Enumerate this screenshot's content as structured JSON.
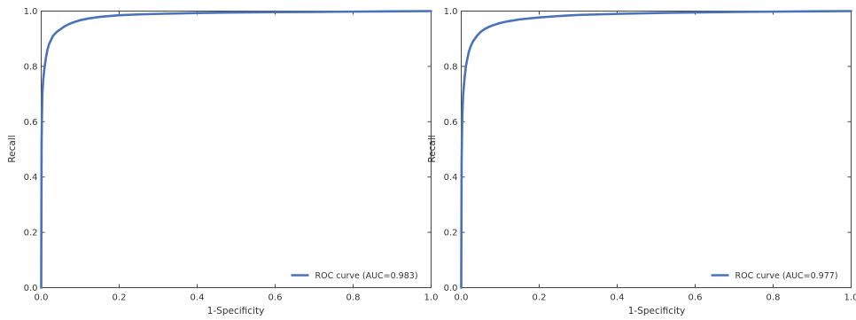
{
  "chart_data": [
    {
      "type": "line",
      "title": "",
      "xlabel": "1-Specificity",
      "ylabel": "Recall",
      "xlim": [
        0,
        1
      ],
      "ylim": [
        0,
        1
      ],
      "xticks": [
        "0.0",
        "0.2",
        "0.4",
        "0.6",
        "0.8",
        "1.0"
      ],
      "yticks": [
        "0.0",
        "0.2",
        "0.4",
        "0.6",
        "0.8",
        "1.0"
      ],
      "grid": false,
      "legend_position": "bottom-right",
      "series": [
        {
          "name": "ROC curve (AUC=0.983)",
          "color": "#4a72b8",
          "x": [
            0,
            0.001,
            0.002,
            0.003,
            0.005,
            0.008,
            0.012,
            0.016,
            0.02,
            0.025,
            0.03,
            0.04,
            0.05,
            0.06,
            0.07,
            0.08,
            0.1,
            0.12,
            0.15,
            0.2,
            0.25,
            0.3,
            0.4,
            0.5,
            0.6,
            0.7,
            0.8,
            0.9,
            1.0
          ],
          "y": [
            0,
            0.52,
            0.63,
            0.7,
            0.75,
            0.79,
            0.83,
            0.86,
            0.88,
            0.895,
            0.91,
            0.925,
            0.935,
            0.945,
            0.952,
            0.958,
            0.967,
            0.973,
            0.979,
            0.985,
            0.988,
            0.99,
            0.993,
            0.995,
            0.996,
            0.997,
            0.998,
            0.999,
            1.0
          ]
        }
      ]
    },
    {
      "type": "line",
      "title": "",
      "xlabel": "1-Specificity",
      "ylabel": "Recall",
      "xlim": [
        0,
        1
      ],
      "ylim": [
        0,
        1
      ],
      "xticks": [
        "0.0",
        "0.2",
        "0.4",
        "0.6",
        "0.8",
        "1.0"
      ],
      "yticks": [
        "0.0",
        "0.2",
        "0.4",
        "0.6",
        "0.8",
        "1.0"
      ],
      "grid": false,
      "legend_position": "bottom-right",
      "series": [
        {
          "name": "ROC curve (AUC=0.977)",
          "color": "#4a72b8",
          "x": [
            0,
            0.001,
            0.002,
            0.003,
            0.005,
            0.008,
            0.012,
            0.016,
            0.02,
            0.025,
            0.03,
            0.04,
            0.05,
            0.06,
            0.07,
            0.08,
            0.1,
            0.12,
            0.15,
            0.2,
            0.25,
            0.3,
            0.4,
            0.5,
            0.6,
            0.7,
            0.8,
            0.9,
            1.0
          ],
          "y": [
            0,
            0.45,
            0.56,
            0.63,
            0.7,
            0.75,
            0.8,
            0.83,
            0.855,
            0.875,
            0.89,
            0.91,
            0.925,
            0.935,
            0.942,
            0.948,
            0.957,
            0.963,
            0.97,
            0.977,
            0.982,
            0.986,
            0.99,
            0.993,
            0.995,
            0.997,
            0.998,
            0.999,
            1.0
          ]
        }
      ]
    }
  ]
}
